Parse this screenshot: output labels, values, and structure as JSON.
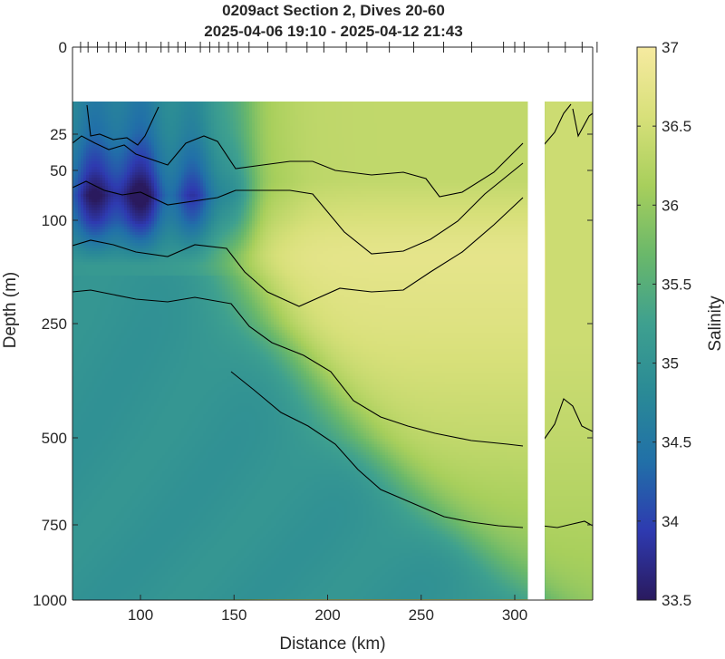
{
  "chart_data": {
    "type": "heatmap",
    "title": "0209act Section 2, Dives 20-60",
    "subtitle": "2025-04-06 19:10 - 2025-04-12 21:43",
    "xlabel": "Distance (km)",
    "ylabel": "Depth (m)",
    "colorbar_label": "Salinity",
    "xlim": [
      63,
      347
    ],
    "ylim": [
      0,
      1000
    ],
    "clim": [
      33.5,
      37.0
    ],
    "x_ticks": [
      "100",
      "150",
      "200",
      "250",
      "300"
    ],
    "x_tick_values": [
      100,
      150,
      200,
      250,
      300
    ],
    "y_ticks": [
      "0",
      "25",
      "50",
      "100",
      "250",
      "500",
      "750",
      "1000"
    ],
    "y_tick_values": [
      0,
      25,
      50,
      100,
      250,
      500,
      750,
      1000
    ],
    "colorbar_ticks": [
      "33.5",
      "34",
      "34.5",
      "35",
      "35.5",
      "36",
      "36.5",
      "37"
    ],
    "colorbar_tick_values": [
      33.5,
      34.0,
      34.5,
      35.0,
      35.5,
      36.0,
      36.5,
      37.0
    ],
    "colormap": [
      "#2a1a5e",
      "#2e3ab0",
      "#2170a8",
      "#2a8a96",
      "#3ea08f",
      "#6ab86a",
      "#a8cf5c",
      "#d8e07a",
      "#f6eaa0"
    ],
    "data_gap_km": [
      307,
      316
    ],
    "dive_x": [
      68,
      72,
      77,
      83,
      87,
      92,
      99,
      103,
      111,
      115,
      120,
      124,
      132,
      137,
      142,
      147,
      152,
      158,
      168,
      178,
      189,
      198,
      210,
      221,
      233,
      246,
      262,
      277,
      294,
      300,
      305,
      318,
      327,
      336,
      344
    ],
    "contours": [
      {
        "depth": [
          100,
          18,
          70,
          48,
          80,
          45,
          66,
          75,
          50,
          70,
          52,
          70,
          28,
          18,
          48,
          63
        ],
        "x": [
          63,
          71,
          75,
          88,
          97,
          113,
          125,
          131,
          137,
          143,
          147,
          152,
          165,
          173,
          200,
          217
        ],
        "note": "polyline"
      }
    ]
  }
}
